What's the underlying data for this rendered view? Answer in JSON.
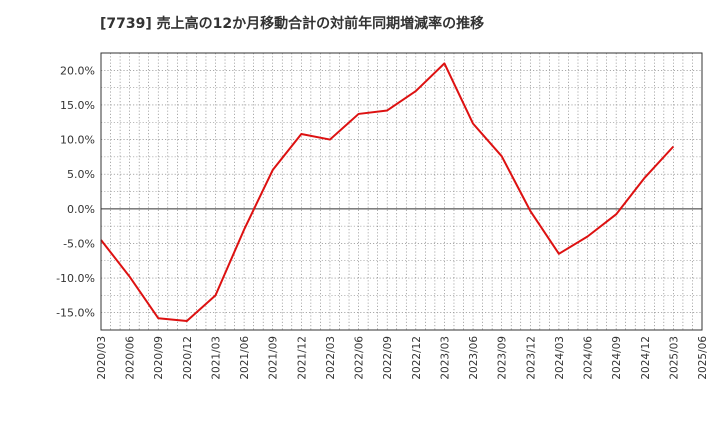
{
  "chart_data": {
    "type": "line",
    "title": "[7739]  売上高の12か月移動合計の対前年同期増減率の推移",
    "xlabel": "",
    "ylabel": "",
    "ylim": [
      -17.5,
      22.5
    ],
    "yticks": [
      -15,
      -10,
      -5,
      0,
      5,
      10,
      15,
      20
    ],
    "ytick_labels": [
      "-15.0%",
      "-10.0%",
      "-5.0%",
      "0.0%",
      "5.0%",
      "10.0%",
      "15.0%",
      "20.0%"
    ],
    "categories": [
      "2020/03",
      "2020/06",
      "2020/09",
      "2020/12",
      "2021/03",
      "2021/06",
      "2021/09",
      "2021/12",
      "2022/03",
      "2022/06",
      "2022/09",
      "2022/12",
      "2023/03",
      "2023/06",
      "2023/09",
      "2023/12",
      "2024/03",
      "2024/06",
      "2024/09",
      "2024/12",
      "2025/03",
      "2025/06"
    ],
    "series": [
      {
        "name": "増減率",
        "color": "#dd1111",
        "values": [
          -4.5,
          -9.8,
          -15.8,
          -16.2,
          -12.5,
          -3.0,
          5.6,
          10.8,
          10.0,
          13.7,
          14.2,
          17.0,
          21.0,
          12.3,
          7.6,
          -0.3,
          -6.5,
          -4.0,
          -0.8,
          4.5,
          9.0,
          null
        ]
      }
    ],
    "grid": true,
    "legend": "none"
  }
}
